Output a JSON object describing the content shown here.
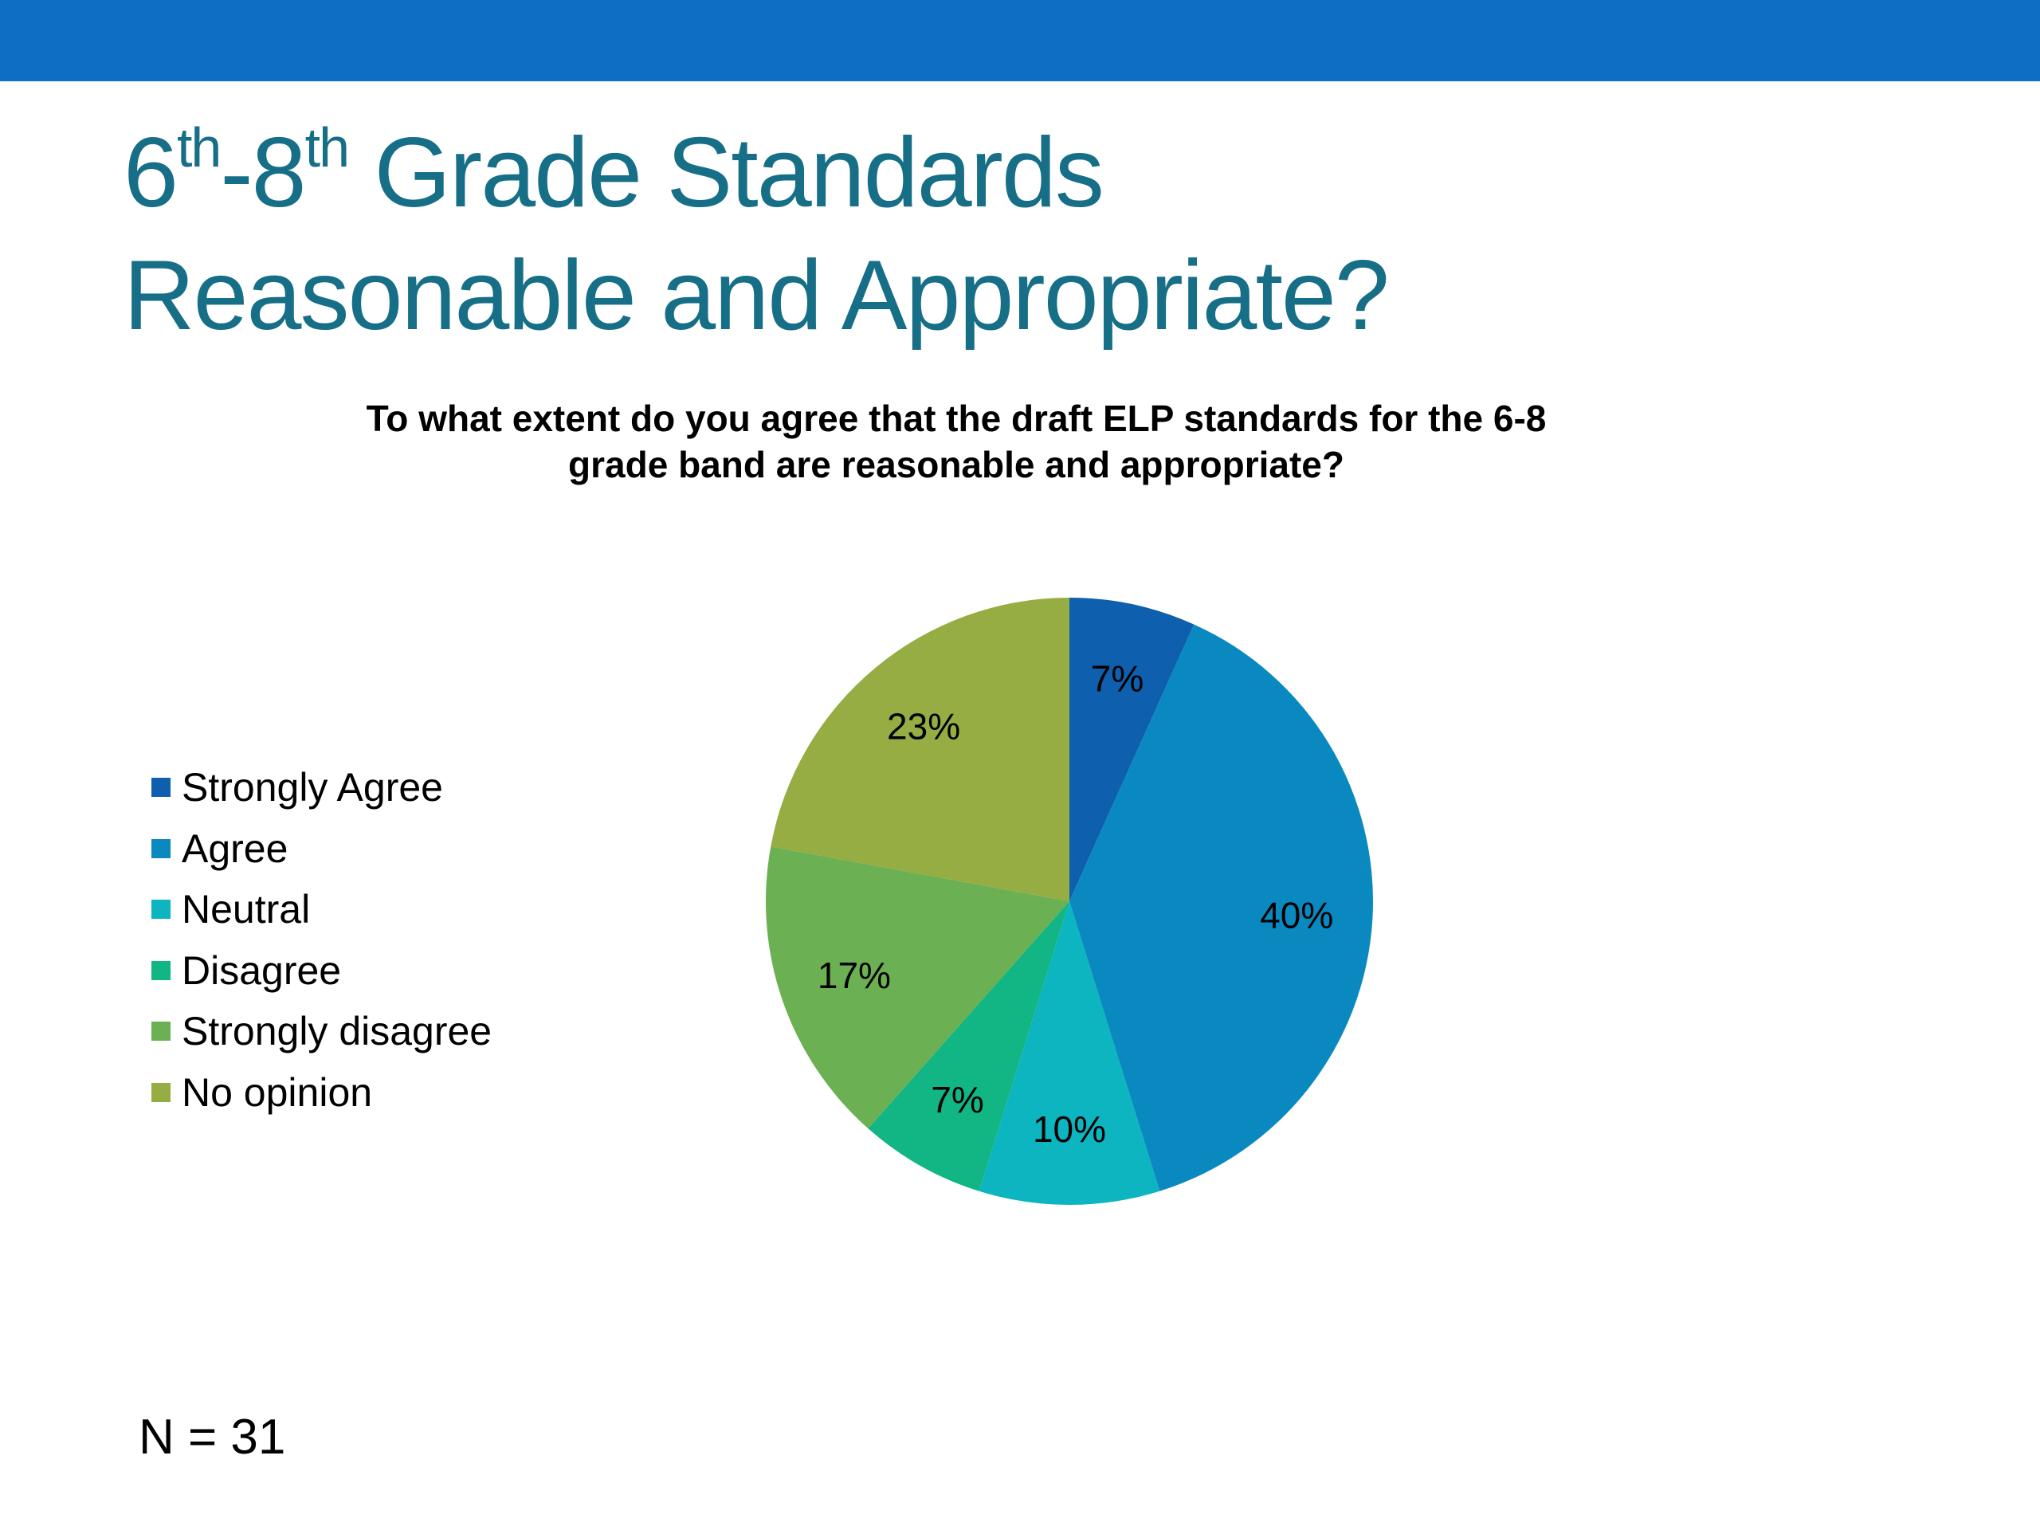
{
  "slide": {
    "title_line1": {
      "num1": "6",
      "sup1": "th",
      "mid": "-8",
      "sup2": "th",
      "rest": " Grade Standards"
    },
    "title_line2": "Reasonable and Appropriate?",
    "n_label": "N = 31"
  },
  "colors": {
    "top_bar": "#0E6EC4",
    "title": "#166F86"
  },
  "chart_data": {
    "type": "pie",
    "title_lines": [
      "To what extent do you agree that the draft ELP standards for the 6-8",
      "grade band are reasonable and appropriate?"
    ],
    "legend_position": "left",
    "categories": [
      "Strongly Agree",
      "Agree",
      "Neutral",
      "Disagree",
      "Strongly disagree",
      "No opinion"
    ],
    "values": [
      7,
      40,
      10,
      7,
      17,
      23
    ],
    "labels": [
      "7%",
      "40%",
      "10%",
      "7%",
      "17%",
      "23%"
    ],
    "colors": [
      "#0E5FAE",
      "#0A89C0",
      "#0CB5BF",
      "#12B584",
      "#6BB052",
      "#96AD43"
    ]
  }
}
